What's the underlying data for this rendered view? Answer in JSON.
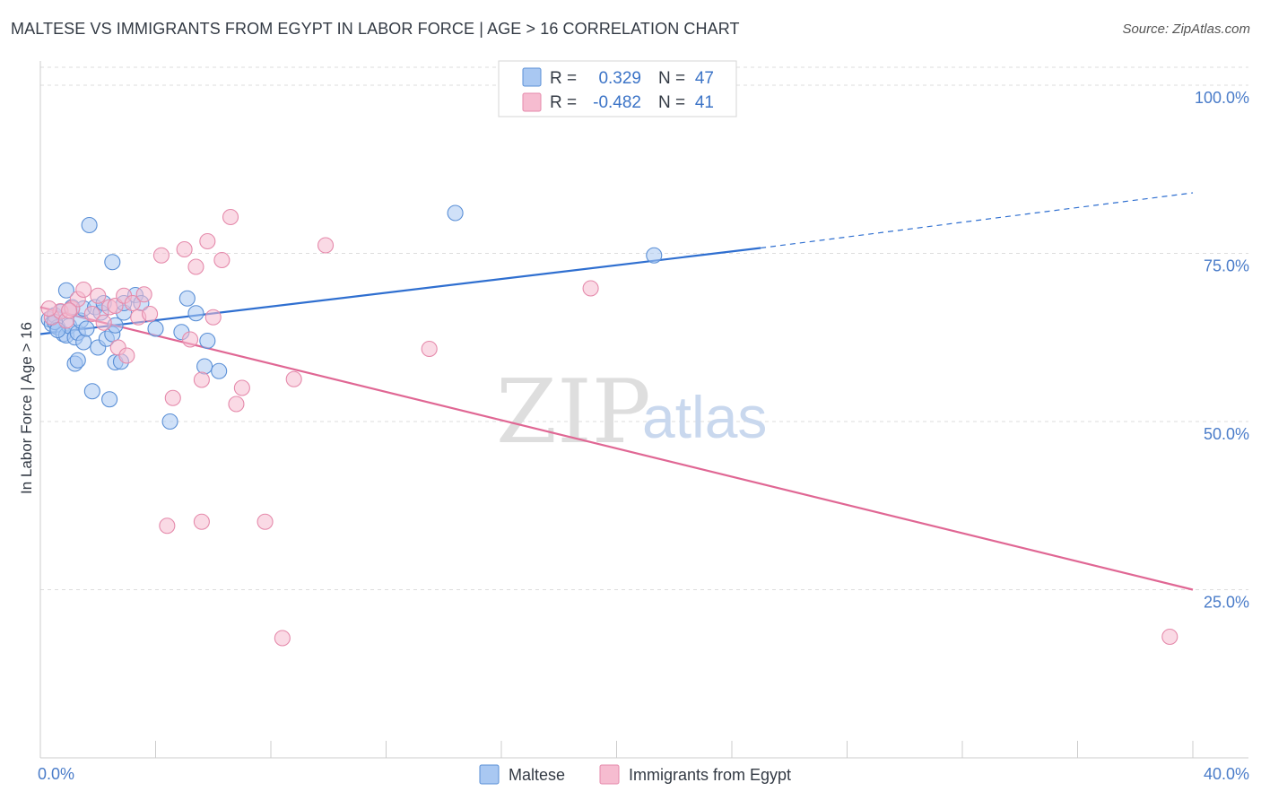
{
  "title": "MALTESE VS IMMIGRANTS FROM EGYPT IN LABOR FORCE | AGE > 16 CORRELATION CHART",
  "source": "Source: ZipAtlas.com",
  "watermark": {
    "part1": "ZIP",
    "part2": "atlas"
  },
  "colors": {
    "maltese_fill": "#a9c8f2",
    "maltese_stroke": "#5a8fd6",
    "maltese_line": "#2f6fd0",
    "egypt_fill": "#f6bcd0",
    "egypt_stroke": "#e58aab",
    "egypt_line": "#e06794",
    "grid": "#dddddd",
    "axis_text": "#4a7cc9"
  },
  "legend": {
    "rows": [
      {
        "r_label": "R =",
        "r_value": "0.329",
        "n_label": "N =",
        "n_value": "47"
      },
      {
        "r_label": "R =",
        "r_value": "-0.482",
        "n_label": "N =",
        "n_value": "41"
      }
    ]
  },
  "chart_data": {
    "type": "scatter",
    "title": "MALTESE VS IMMIGRANTS FROM EGYPT IN LABOR FORCE | AGE > 16 CORRELATION CHART",
    "xlabel": "",
    "ylabel": "In Labor Force | Age > 16",
    "xlim": [
      0,
      40
    ],
    "ylim": [
      0,
      102
    ],
    "x_tick_labels": [
      "0.0%",
      "40.0%"
    ],
    "y_ticks": [
      25,
      50,
      75,
      100
    ],
    "y_tick_labels": [
      "25.0%",
      "50.0%",
      "75.0%",
      "100.0%"
    ],
    "grid": true,
    "series": [
      {
        "name": "Maltese",
        "points": [
          [
            0.3,
            65.2
          ],
          [
            0.4,
            64.5
          ],
          [
            0.5,
            65.8
          ],
          [
            0.6,
            64.0
          ],
          [
            0.7,
            66.3
          ],
          [
            0.8,
            63.0
          ],
          [
            0.9,
            62.8
          ],
          [
            0.9,
            69.5
          ],
          [
            1.0,
            64.2
          ],
          [
            1.1,
            67.0
          ],
          [
            1.2,
            62.5
          ],
          [
            1.3,
            63.2
          ],
          [
            1.2,
            58.6
          ],
          [
            1.3,
            59.1
          ],
          [
            1.4,
            65.0
          ],
          [
            1.5,
            66.8
          ],
          [
            1.5,
            61.8
          ],
          [
            1.6,
            63.8
          ],
          [
            1.7,
            79.2
          ],
          [
            1.8,
            54.5
          ],
          [
            1.9,
            67.0
          ],
          [
            2.0,
            61.0
          ],
          [
            2.1,
            66.2
          ],
          [
            2.2,
            67.6
          ],
          [
            2.3,
            62.3
          ],
          [
            2.4,
            53.3
          ],
          [
            2.5,
            63.0
          ],
          [
            2.5,
            73.7
          ],
          [
            2.6,
            64.3
          ],
          [
            2.6,
            58.8
          ],
          [
            2.8,
            58.9
          ],
          [
            2.9,
            66.2
          ],
          [
            2.9,
            67.6
          ],
          [
            3.3,
            68.8
          ],
          [
            3.5,
            67.6
          ],
          [
            4.0,
            63.8
          ],
          [
            4.5,
            50.0
          ],
          [
            4.9,
            63.3
          ],
          [
            5.1,
            68.3
          ],
          [
            5.4,
            66.1
          ],
          [
            5.7,
            58.2
          ],
          [
            5.8,
            62.0
          ],
          [
            6.2,
            57.5
          ],
          [
            14.4,
            81.0
          ],
          [
            21.3,
            74.7
          ],
          [
            0.5,
            64.8
          ],
          [
            0.6,
            63.6
          ]
        ]
      },
      {
        "name": "Immigrants from Egypt",
        "points": [
          [
            0.4,
            65.5
          ],
          [
            0.7,
            66.4
          ],
          [
            0.9,
            65.0
          ],
          [
            1.1,
            66.8
          ],
          [
            1.3,
            68.2
          ],
          [
            1.5,
            69.6
          ],
          [
            1.8,
            66.0
          ],
          [
            2.0,
            68.7
          ],
          [
            2.2,
            64.7
          ],
          [
            2.4,
            67.0
          ],
          [
            2.6,
            67.2
          ],
          [
            2.7,
            61.0
          ],
          [
            2.9,
            68.7
          ],
          [
            3.0,
            59.8
          ],
          [
            3.2,
            67.6
          ],
          [
            3.4,
            65.5
          ],
          [
            3.6,
            68.9
          ],
          [
            3.8,
            66.0
          ],
          [
            4.2,
            74.7
          ],
          [
            4.6,
            53.5
          ],
          [
            5.0,
            75.6
          ],
          [
            5.2,
            62.2
          ],
          [
            5.4,
            73.0
          ],
          [
            5.6,
            56.2
          ],
          [
            5.8,
            76.8
          ],
          [
            6.0,
            65.5
          ],
          [
            6.3,
            74.0
          ],
          [
            6.6,
            80.4
          ],
          [
            6.8,
            52.6
          ],
          [
            7.0,
            55.0
          ],
          [
            8.8,
            56.3
          ],
          [
            9.9,
            76.2
          ],
          [
            13.5,
            60.8
          ],
          [
            19.1,
            69.8
          ],
          [
            4.4,
            34.5
          ],
          [
            5.6,
            35.1
          ],
          [
            7.8,
            35.1
          ],
          [
            8.4,
            17.8
          ],
          [
            39.2,
            18.0
          ],
          [
            0.3,
            66.8
          ],
          [
            1.0,
            66.5
          ]
        ]
      }
    ],
    "trend_lines": [
      {
        "series": "Maltese",
        "solid_from": [
          0,
          63.0
        ],
        "solid_to": [
          25.0,
          75.8
        ],
        "dashed_to": [
          40,
          84.0
        ]
      },
      {
        "series": "Immigrants from Egypt",
        "from": [
          0,
          67.0
        ],
        "to": [
          40,
          25.0
        ]
      }
    ],
    "legend_position": "top-center"
  },
  "bottom_legend": {
    "items": [
      "Maltese",
      "Immigrants from Egypt"
    ]
  }
}
